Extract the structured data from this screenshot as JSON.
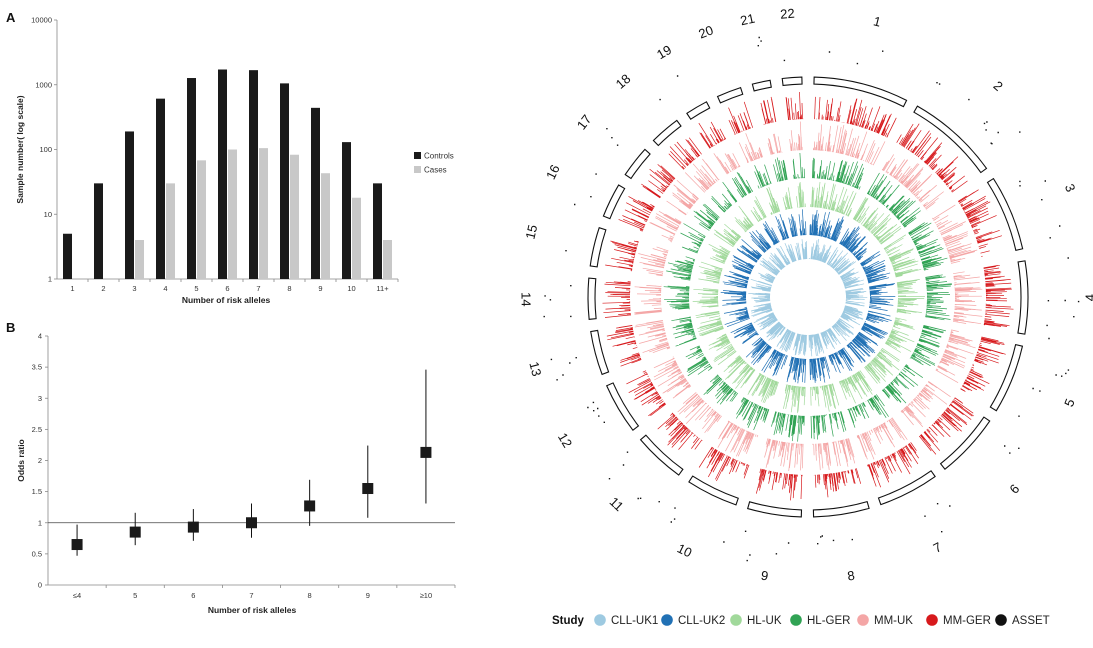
{
  "chart_data": [
    {
      "panel": "A",
      "type": "bar",
      "ylabel": "Sample number( log scale)",
      "xlabel": "Number of risk alleles",
      "yscale": "log",
      "ylim": [
        1,
        10000
      ],
      "yticks": [
        "1",
        "10",
        "100",
        "1000",
        "10000"
      ],
      "categories": [
        "1",
        "2",
        "3",
        "4",
        "5",
        "6",
        "7",
        "8",
        "9",
        "10",
        "11+"
      ],
      "series": [
        {
          "name": "Controls",
          "color": "#1a1a1a",
          "values": [
            5,
            30,
            190,
            610,
            1270,
            1720,
            1680,
            1050,
            440,
            130,
            30
          ]
        },
        {
          "name": "Cases",
          "color": "#c8c8c8",
          "values": [
            null,
            null,
            4,
            30,
            68,
            100,
            105,
            83,
            43,
            18,
            4
          ]
        }
      ],
      "legend": "right"
    },
    {
      "panel": "B",
      "type": "scatter",
      "ylabel": "Odds ratio",
      "xlabel": "Number of risk alleles",
      "ylim": [
        0,
        4
      ],
      "yticks": [
        "0",
        "0.5",
        "1",
        "1.5",
        "2",
        "2.5",
        "3",
        "3.5",
        "4"
      ],
      "categories": [
        "≤4",
        "5",
        "6",
        "7",
        "8",
        "9",
        "≥10"
      ],
      "points": [
        {
          "x": "≤4",
          "or": 0.65,
          "lo": 0.47,
          "hi": 0.97
        },
        {
          "x": "5",
          "or": 0.85,
          "lo": 0.64,
          "hi": 1.16
        },
        {
          "x": "6",
          "or": 0.93,
          "lo": 0.71,
          "hi": 1.22
        },
        {
          "x": "7",
          "or": 1.0,
          "lo": 0.76,
          "hi": 1.31
        },
        {
          "x": "8",
          "or": 1.27,
          "lo": 0.95,
          "hi": 1.69
        },
        {
          "x": "9",
          "or": 1.55,
          "lo": 1.08,
          "hi": 2.24
        },
        {
          "x": "≥10",
          "or": 2.13,
          "lo": 1.31,
          "hi": 3.46
        }
      ],
      "reference_line": 1
    },
    {
      "type": "circular",
      "chromosomes": [
        "1",
        "2",
        "3",
        "4",
        "5",
        "6",
        "7",
        "8",
        "9",
        "10",
        "11",
        "12",
        "13",
        "14",
        "15",
        "16",
        "17",
        "18",
        "19",
        "20",
        "21",
        "22"
      ],
      "tracks": [
        {
          "name": "CLL-UK1",
          "color": "#9ecae1"
        },
        {
          "name": "CLL-UK2",
          "color": "#2171b5"
        },
        {
          "name": "HL-UK",
          "color": "#a1d99b"
        },
        {
          "name": "HL-GER",
          "color": "#31a354"
        },
        {
          "name": "MM-UK",
          "color": "#f4a6a6"
        },
        {
          "name": "MM-GER",
          "color": "#d7191c"
        },
        {
          "name": "ASSET",
          "color": "#111111"
        }
      ],
      "legend_title": "Study",
      "legend": "bottom"
    }
  ],
  "panels": {
    "a_label": "A",
    "b_label": "B"
  }
}
